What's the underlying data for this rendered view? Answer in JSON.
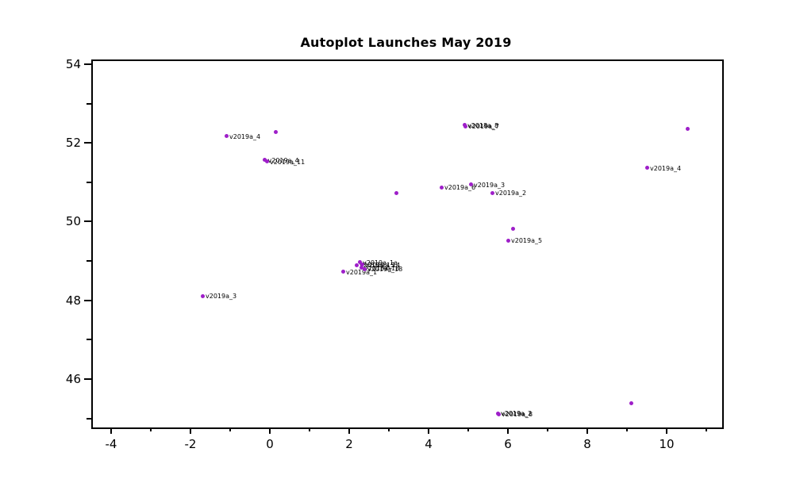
{
  "title": "Autoplot Launches May 2019",
  "chart_data": {
    "type": "scatter",
    "title": "Autoplot Launches May 2019",
    "xlabel": "",
    "ylabel": "",
    "xlim": [
      -4.5,
      11.36
    ],
    "ylim": [
      44.81,
      54.12
    ],
    "grid": false,
    "legend": "none",
    "x_major_ticks": [
      -4,
      -2,
      0,
      2,
      4,
      6,
      8,
      10
    ],
    "x_minor_ticks": [
      -3,
      -1,
      1,
      3,
      5,
      7,
      9,
      11
    ],
    "y_major_ticks": [
      46,
      48,
      50,
      52,
      54
    ],
    "y_minor_ticks": [
      45,
      47,
      49,
      51,
      53
    ],
    "marker_color": "#9e1fc9",
    "coastline_color": "#c9c9c9",
    "axis_color": "#000000",
    "points": [
      {
        "lon": -1.1,
        "lat": 52.17,
        "label": "v2019a_4"
      },
      {
        "lon": 0.14,
        "lat": 52.27,
        "label": ""
      },
      {
        "lon": -0.13,
        "lat": 51.57,
        "label": "v2019a_4"
      },
      {
        "lon": -0.08,
        "lat": 51.53,
        "label": "v2019a_11"
      },
      {
        "lon": 4.9,
        "lat": 52.45,
        "label": "v2018a_8"
      },
      {
        "lon": 4.92,
        "lat": 52.42,
        "label": "v2019a_7"
      },
      {
        "lon": 3.18,
        "lat": 50.73,
        "label": ""
      },
      {
        "lon": 4.32,
        "lat": 50.87,
        "label": "v2019a_6"
      },
      {
        "lon": 5.06,
        "lat": 50.94,
        "label": "v2019a_3"
      },
      {
        "lon": 5.6,
        "lat": 50.73,
        "label": "v2019a_2"
      },
      {
        "lon": 6.12,
        "lat": 49.81,
        "label": ""
      },
      {
        "lon": 6.0,
        "lat": 49.52,
        "label": "v2019a_5"
      },
      {
        "lon": 9.5,
        "lat": 51.36,
        "label": "v2019a_4"
      },
      {
        "lon": 10.52,
        "lat": 52.35,
        "label": ""
      },
      {
        "lon": -1.7,
        "lat": 48.11,
        "label": "v2019a_3"
      },
      {
        "lon": 1.84,
        "lat": 48.72,
        "label": "v2019a_1"
      },
      {
        "lon": 2.18,
        "lat": 48.9,
        "label": "v2018a_15"
      },
      {
        "lon": 2.26,
        "lat": 48.97,
        "label": "v2019a_1a"
      },
      {
        "lon": 2.32,
        "lat": 48.91,
        "label": "v2019a_14"
      },
      {
        "lon": 2.3,
        "lat": 48.83,
        "label": "v2018a_18"
      },
      {
        "lon": 2.38,
        "lat": 48.79,
        "label": "v2019a_18"
      },
      {
        "lon": 5.74,
        "lat": 45.13,
        "label": "v2019a_2"
      },
      {
        "lon": 5.76,
        "lat": 45.11,
        "label": "v2019a_8"
      },
      {
        "lon": 9.1,
        "lat": 45.39,
        "label": ""
      }
    ]
  }
}
